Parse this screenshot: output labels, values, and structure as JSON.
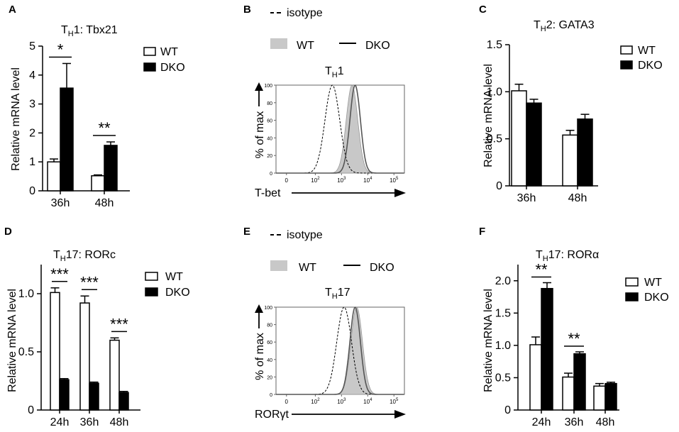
{
  "colors": {
    "wt": "#ffffff",
    "dko": "#000000",
    "filled": "#c8c8c8",
    "axis": "#000000",
    "dko_line": "#555555"
  },
  "chart_data": [
    {
      "panel": "A",
      "type": "bar",
      "title_main": "T",
      "title_sub": "H",
      "title_rest": "1: Tbx21",
      "ylabel": "Relative mRNA level",
      "categories": [
        "36h",
        "48h"
      ],
      "series": [
        {
          "name": "WT",
          "values": [
            1.0,
            0.52
          ],
          "errors": [
            0.1,
            0.03
          ]
        },
        {
          "name": "DKO",
          "values": [
            3.55,
            1.57
          ],
          "errors": [
            0.85,
            0.12
          ]
        }
      ],
      "ylim": [
        0,
        5
      ],
      "yticks": [
        0,
        1,
        2,
        3,
        4,
        5
      ],
      "significance": [
        "*",
        "**"
      ]
    },
    {
      "panel": "B",
      "type": "histogram",
      "legend_isotype": "isotype",
      "legend_wt": "WT",
      "legend_dko": "DKO",
      "title_main": "T",
      "title_sub": "H",
      "title_rest": "1",
      "ylabel": "% of max",
      "xlabel": "T-bet",
      "yticks": [
        "0",
        "20",
        "40",
        "60",
        "80",
        "100"
      ],
      "xtick_main": [
        "0",
        "10",
        "10",
        "10",
        "10"
      ],
      "xtick_exp": [
        "",
        "2",
        "3",
        "4",
        "5"
      ],
      "peaks": {
        "isotype": 2.65,
        "wt": 3.4,
        "dko": 3.52
      }
    },
    {
      "panel": "C",
      "type": "bar",
      "title_main": "T",
      "title_sub": "H",
      "title_rest": "2: GATA3",
      "ylabel": "Relative mRNA level",
      "categories": [
        "36h",
        "48h"
      ],
      "series": [
        {
          "name": "WT",
          "values": [
            1.01,
            0.54
          ],
          "errors": [
            0.07,
            0.05
          ]
        },
        {
          "name": "DKO",
          "values": [
            0.88,
            0.71
          ],
          "errors": [
            0.04,
            0.05
          ]
        }
      ],
      "ylim": [
        0,
        1.5
      ],
      "yticks": [
        0,
        0.5,
        1.0,
        1.5
      ],
      "ytick_labels": [
        "0",
        "0.5",
        "1.0",
        "1.5"
      ]
    },
    {
      "panel": "D",
      "type": "bar",
      "title_main": "T",
      "title_sub": "H",
      "title_rest": "17: RORc",
      "ylabel": "Relative mRNA level",
      "categories": [
        "24h",
        "36h",
        "48h"
      ],
      "series": [
        {
          "name": "WT",
          "values": [
            1.01,
            0.92,
            0.6
          ],
          "errors": [
            0.04,
            0.06,
            0.02
          ]
        },
        {
          "name": "DKO",
          "values": [
            0.26,
            0.23,
            0.15
          ],
          "errors": [
            0.01,
            0.01,
            0.01
          ]
        }
      ],
      "ylim": [
        0,
        1.25
      ],
      "yticks": [
        0,
        0.5,
        1.0
      ],
      "ytick_labels": [
        "0",
        "0.5",
        "1.0"
      ],
      "significance": [
        "***",
        "***",
        "***"
      ]
    },
    {
      "panel": "E",
      "type": "histogram",
      "legend_isotype": "isotype",
      "legend_wt": "WT",
      "legend_dko": "DKO",
      "title_main": "T",
      "title_sub": "H",
      "title_rest": "17",
      "ylabel": "% of max",
      "xlabel": "RORγt",
      "yticks": [
        "0",
        "20",
        "40",
        "60",
        "80",
        "100"
      ],
      "xtick_main": [
        "0",
        "10",
        "10",
        "10",
        "10"
      ],
      "xtick_exp": [
        "",
        "2",
        "3",
        "4",
        "5"
      ],
      "peaks": {
        "isotype": 3.1,
        "wt": 3.58,
        "dko": 3.52
      }
    },
    {
      "panel": "F",
      "type": "bar",
      "title_main": "T",
      "title_sub": "H",
      "title_rest": "17: RORα",
      "ylabel": "Relative mRNA level",
      "categories": [
        "24h",
        "36h",
        "48h"
      ],
      "series": [
        {
          "name": "WT",
          "values": [
            1.01,
            0.51,
            0.37
          ],
          "errors": [
            0.12,
            0.06,
            0.04
          ]
        },
        {
          "name": "DKO",
          "values": [
            1.88,
            0.87,
            0.41
          ],
          "errors": [
            0.09,
            0.03,
            0.02
          ]
        }
      ],
      "ylim": [
        0,
        2.25
      ],
      "yticks": [
        0,
        0.5,
        1.0,
        1.5,
        2.0
      ],
      "ytick_labels": [
        "0",
        "0.5",
        "1.0",
        "1.5",
        "2.0"
      ],
      "significance": [
        "**",
        "**"
      ]
    }
  ]
}
